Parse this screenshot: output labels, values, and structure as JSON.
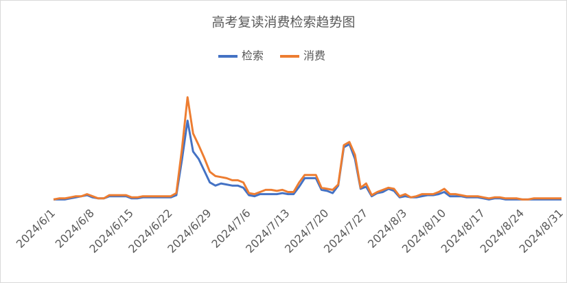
{
  "chart_data": {
    "type": "line",
    "title": "高考复读消费检索趋势图",
    "categories": [
      "2024/6/1",
      null,
      null,
      null,
      null,
      null,
      null,
      "2024/6/8",
      null,
      null,
      null,
      null,
      null,
      null,
      "2024/6/15",
      null,
      null,
      null,
      null,
      null,
      null,
      "2024/6/22",
      null,
      null,
      null,
      null,
      null,
      null,
      "2024/6/29",
      null,
      null,
      null,
      null,
      null,
      null,
      "2024/7/6",
      null,
      null,
      null,
      null,
      null,
      null,
      "2024/7/13",
      null,
      null,
      null,
      null,
      null,
      null,
      "2024/7/20",
      null,
      null,
      null,
      null,
      null,
      null,
      "2024/7/27",
      null,
      null,
      null,
      null,
      null,
      null,
      "2024/8/3",
      null,
      null,
      null,
      null,
      null,
      null,
      "2024/8/10",
      null,
      null,
      null,
      null,
      null,
      null,
      "2024/8/17",
      null,
      null,
      null,
      null,
      null,
      null,
      "2024/8/24",
      null,
      null,
      null,
      null,
      null,
      null,
      "2024/8/31"
    ],
    "series": [
      {
        "name": "检索",
        "color": "#4472c4",
        "values": [
          3,
          3,
          3,
          4,
          5,
          6,
          7,
          5,
          4,
          4,
          6,
          6,
          6,
          6,
          4,
          4,
          5,
          5,
          5,
          5,
          5,
          5,
          7,
          40,
          77,
          48,
          41,
          30,
          19,
          16,
          18,
          17,
          16,
          16,
          14,
          7,
          6,
          8,
          8,
          8,
          8,
          9,
          8,
          8,
          15,
          23,
          23,
          23,
          12,
          11,
          9,
          16,
          52,
          55,
          41,
          13,
          15,
          6,
          9,
          10,
          13,
          11,
          5,
          6,
          5,
          5,
          6,
          7,
          7,
          8,
          10,
          6,
          6,
          6,
          5,
          5,
          5,
          4,
          3,
          4,
          4,
          3,
          3,
          3,
          3,
          3,
          3,
          3,
          3,
          3,
          3,
          3
        ]
      },
      {
        "name": "消费",
        "color": "#ed7d31",
        "values": [
          3,
          4,
          4,
          5,
          6,
          6,
          8,
          6,
          4,
          4,
          7,
          7,
          7,
          7,
          5,
          5,
          6,
          6,
          6,
          6,
          6,
          6,
          9,
          50,
          99,
          65,
          54,
          42,
          29,
          25,
          24,
          23,
          21,
          21,
          19,
          9,
          8,
          10,
          12,
          12,
          11,
          12,
          10,
          10,
          19,
          26,
          26,
          26,
          14,
          13,
          12,
          17,
          54,
          57,
          45,
          14,
          18,
          7,
          10,
          12,
          14,
          13,
          6,
          8,
          5,
          6,
          8,
          8,
          8,
          10,
          13,
          8,
          8,
          7,
          6,
          6,
          6,
          5,
          4,
          5,
          5,
          4,
          4,
          4,
          3,
          3,
          4,
          4,
          4,
          4,
          4,
          4
        ]
      }
    ],
    "ylim": [
      0,
      100
    ],
    "legend": "top"
  }
}
